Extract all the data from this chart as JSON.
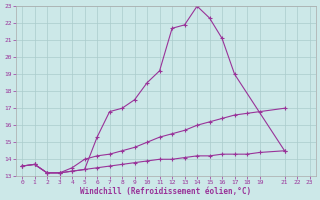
{
  "xlabel": "Windchill (Refroidissement éolien,°C)",
  "xlim": [
    -0.5,
    23.5
  ],
  "ylim": [
    13,
    23
  ],
  "xticks": [
    0,
    1,
    2,
    3,
    4,
    5,
    6,
    7,
    8,
    9,
    10,
    11,
    12,
    13,
    14,
    15,
    16,
    17,
    18,
    19,
    21,
    22,
    23
  ],
  "yticks": [
    13,
    14,
    15,
    16,
    17,
    18,
    19,
    20,
    21,
    22,
    23
  ],
  "background_color": "#cce8e8",
  "line_color": "#993399",
  "grid_color": "#aacccc",
  "lines": [
    {
      "x": [
        0,
        1,
        2,
        3,
        4,
        5,
        6,
        7,
        8,
        9,
        10,
        11,
        12,
        13,
        14,
        15,
        16,
        17,
        21
      ],
      "y": [
        13.6,
        13.7,
        13.2,
        13.2,
        13.3,
        13.4,
        15.3,
        16.8,
        17.0,
        17.5,
        18.5,
        19.2,
        21.7,
        21.9,
        23.0,
        22.3,
        21.1,
        19.0,
        14.5
      ]
    },
    {
      "x": [
        0,
        1,
        2,
        3,
        4,
        5,
        6,
        7,
        8,
        9,
        10,
        11,
        12,
        13,
        14,
        15,
        16,
        17,
        18,
        19,
        21
      ],
      "y": [
        13.6,
        13.7,
        13.2,
        13.2,
        13.5,
        14.0,
        14.2,
        14.3,
        14.5,
        14.7,
        15.0,
        15.3,
        15.5,
        15.7,
        16.0,
        16.2,
        16.4,
        16.6,
        16.7,
        16.8,
        17.0
      ]
    },
    {
      "x": [
        0,
        1,
        2,
        3,
        4,
        5,
        6,
        7,
        8,
        9,
        10,
        11,
        12,
        13,
        14,
        15,
        16,
        17,
        18,
        19,
        21
      ],
      "y": [
        13.6,
        13.7,
        13.2,
        13.2,
        13.3,
        13.4,
        13.5,
        13.6,
        13.7,
        13.8,
        13.9,
        14.0,
        14.0,
        14.1,
        14.2,
        14.2,
        14.3,
        14.3,
        14.3,
        14.4,
        14.5
      ]
    }
  ]
}
